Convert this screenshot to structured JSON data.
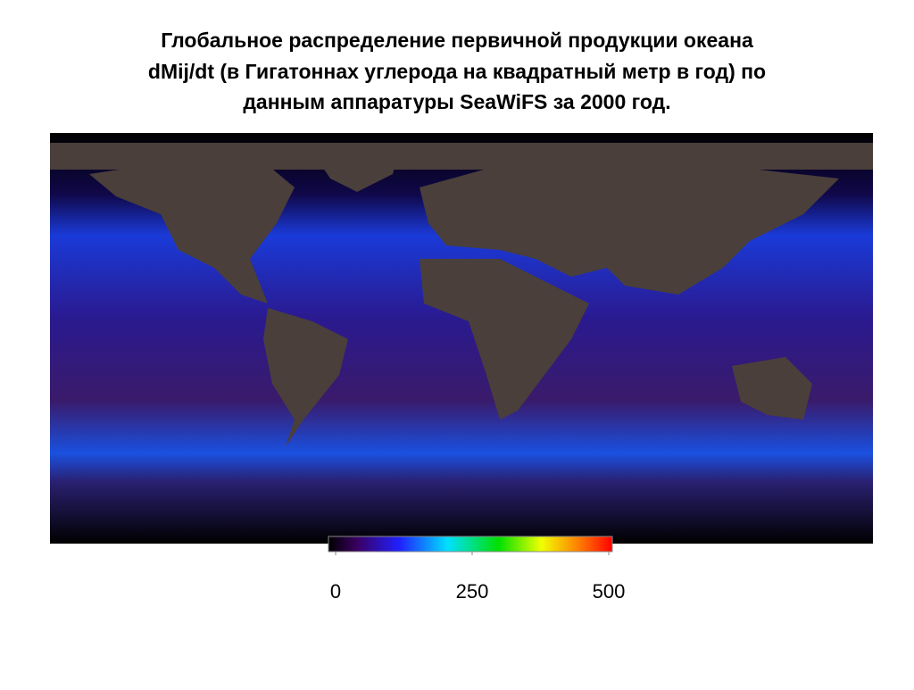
{
  "title": [
    "Глобальное распределение первичной продукции океана",
    "dMij/dt (в Гигатоннах углерода на квадратный метр в год) по",
    "данным аппаратуры SeaWiFS за 2000 год."
  ],
  "colorbar": {
    "lim": [
      0,
      500
    ],
    "ticks": [
      0,
      250,
      500
    ]
  }
}
